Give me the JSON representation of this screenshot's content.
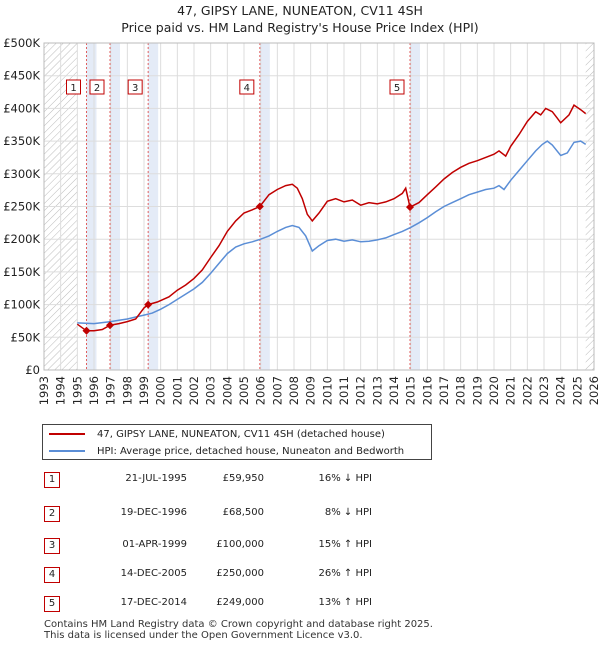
{
  "chart_data": {
    "type": "line",
    "title": "47, GIPSY LANE, NUNEATON, CV11 4SH",
    "subtitle": "Price paid vs. HM Land Registry's House Price Index (HPI)",
    "xlim": [
      1993,
      2026
    ],
    "ylim": [
      0,
      500000
    ],
    "x_ticks": [
      "1993",
      "1994",
      "1995",
      "1996",
      "1997",
      "1998",
      "1999",
      "2000",
      "2001",
      "2002",
      "2003",
      "2004",
      "2005",
      "2006",
      "2007",
      "2008",
      "2009",
      "2010",
      "2011",
      "2012",
      "2013",
      "2014",
      "2015",
      "2016",
      "2017",
      "2018",
      "2019",
      "2020",
      "2021",
      "2022",
      "2023",
      "2024",
      "2025",
      "2026"
    ],
    "y_ticks": [
      {
        "value": 0,
        "label": "£0"
      },
      {
        "value": 50000,
        "label": "£50K"
      },
      {
        "value": 100000,
        "label": "£100K"
      },
      {
        "value": 150000,
        "label": "£150K"
      },
      {
        "value": 200000,
        "label": "£200K"
      },
      {
        "value": 250000,
        "label": "£250K"
      },
      {
        "value": 300000,
        "label": "£300K"
      },
      {
        "value": 350000,
        "label": "£350K"
      },
      {
        "value": 400000,
        "label": "£400K"
      },
      {
        "value": 450000,
        "label": "£450K"
      },
      {
        "value": 500000,
        "label": "£500K"
      }
    ],
    "hatch_ranges": [
      [
        1993,
        1995.0
      ],
      [
        2025.5,
        2026
      ]
    ],
    "series": [
      {
        "name": "47, GIPSY LANE, NUNEATON, CV11 4SH (detached house)",
        "color": "#c00000",
        "points": [
          [
            1995.0,
            70000
          ],
          [
            1995.55,
            59950
          ],
          [
            1996.0,
            60000
          ],
          [
            1996.5,
            62000
          ],
          [
            1996.96,
            68500
          ],
          [
            1997.5,
            71000
          ],
          [
            1998.0,
            74000
          ],
          [
            1998.5,
            78000
          ],
          [
            1999.0,
            95000
          ],
          [
            1999.25,
            100000
          ],
          [
            1999.8,
            104000
          ],
          [
            2000.5,
            112000
          ],
          [
            2001.0,
            122000
          ],
          [
            2001.5,
            130000
          ],
          [
            2002.0,
            140000
          ],
          [
            2002.5,
            153000
          ],
          [
            2003.0,
            172000
          ],
          [
            2003.5,
            190000
          ],
          [
            2004.0,
            212000
          ],
          [
            2004.5,
            228000
          ],
          [
            2005.0,
            240000
          ],
          [
            2005.5,
            245000
          ],
          [
            2005.95,
            250000
          ],
          [
            2006.5,
            268000
          ],
          [
            2007.0,
            276000
          ],
          [
            2007.5,
            282000
          ],
          [
            2007.9,
            284000
          ],
          [
            2008.2,
            278000
          ],
          [
            2008.5,
            262000
          ],
          [
            2008.8,
            238000
          ],
          [
            2009.1,
            228000
          ],
          [
            2009.5,
            240000
          ],
          [
            2010.0,
            258000
          ],
          [
            2010.5,
            262000
          ],
          [
            2011.0,
            257000
          ],
          [
            2011.5,
            260000
          ],
          [
            2012.0,
            252000
          ],
          [
            2012.5,
            256000
          ],
          [
            2013.0,
            254000
          ],
          [
            2013.5,
            257000
          ],
          [
            2014.0,
            262000
          ],
          [
            2014.5,
            270000
          ],
          [
            2014.7,
            278000
          ],
          [
            2014.96,
            249000
          ],
          [
            2015.5,
            256000
          ],
          [
            2016.0,
            268000
          ],
          [
            2016.5,
            280000
          ],
          [
            2017.0,
            292000
          ],
          [
            2017.5,
            302000
          ],
          [
            2018.0,
            310000
          ],
          [
            2018.5,
            316000
          ],
          [
            2019.0,
            320000
          ],
          [
            2019.5,
            325000
          ],
          [
            2020.0,
            330000
          ],
          [
            2020.3,
            335000
          ],
          [
            2020.7,
            327000
          ],
          [
            2021.0,
            342000
          ],
          [
            2021.5,
            360000
          ],
          [
            2022.0,
            380000
          ],
          [
            2022.5,
            395000
          ],
          [
            2022.8,
            390000
          ],
          [
            2023.1,
            400000
          ],
          [
            2023.5,
            395000
          ],
          [
            2023.8,
            385000
          ],
          [
            2024.0,
            378000
          ],
          [
            2024.5,
            390000
          ],
          [
            2024.8,
            405000
          ],
          [
            2025.2,
            398000
          ],
          [
            2025.5,
            392000
          ]
        ]
      },
      {
        "name": "HPI: Average price, detached house, Nuneaton and Bedworth",
        "color": "#5b8ed6",
        "points": [
          [
            1995.0,
            72000
          ],
          [
            1995.5,
            71500
          ],
          [
            1996.0,
            71000
          ],
          [
            1996.5,
            72500
          ],
          [
            1997.0,
            74000
          ],
          [
            1997.5,
            76000
          ],
          [
            1998.0,
            78000
          ],
          [
            1998.5,
            81000
          ],
          [
            1999.0,
            84000
          ],
          [
            1999.5,
            87000
          ],
          [
            2000.0,
            93000
          ],
          [
            2000.5,
            100000
          ],
          [
            2001.0,
            108000
          ],
          [
            2001.5,
            116000
          ],
          [
            2002.0,
            124000
          ],
          [
            2002.5,
            134000
          ],
          [
            2003.0,
            148000
          ],
          [
            2003.5,
            163000
          ],
          [
            2004.0,
            178000
          ],
          [
            2004.5,
            188000
          ],
          [
            2005.0,
            193000
          ],
          [
            2005.5,
            196000
          ],
          [
            2006.0,
            200000
          ],
          [
            2006.5,
            205000
          ],
          [
            2007.0,
            212000
          ],
          [
            2007.5,
            218000
          ],
          [
            2007.9,
            221000
          ],
          [
            2008.3,
            218000
          ],
          [
            2008.7,
            205000
          ],
          [
            2009.1,
            182000
          ],
          [
            2009.5,
            190000
          ],
          [
            2010.0,
            198000
          ],
          [
            2010.5,
            200000
          ],
          [
            2011.0,
            197000
          ],
          [
            2011.5,
            199000
          ],
          [
            2012.0,
            196000
          ],
          [
            2012.5,
            197000
          ],
          [
            2013.0,
            199000
          ],
          [
            2013.5,
            202000
          ],
          [
            2014.0,
            207000
          ],
          [
            2014.5,
            212000
          ],
          [
            2015.0,
            218000
          ],
          [
            2015.5,
            225000
          ],
          [
            2016.0,
            233000
          ],
          [
            2016.5,
            242000
          ],
          [
            2017.0,
            250000
          ],
          [
            2017.5,
            256000
          ],
          [
            2018.0,
            262000
          ],
          [
            2018.5,
            268000
          ],
          [
            2019.0,
            272000
          ],
          [
            2019.5,
            276000
          ],
          [
            2020.0,
            278000
          ],
          [
            2020.3,
            282000
          ],
          [
            2020.6,
            276000
          ],
          [
            2021.0,
            290000
          ],
          [
            2021.5,
            305000
          ],
          [
            2022.0,
            320000
          ],
          [
            2022.5,
            335000
          ],
          [
            2022.9,
            345000
          ],
          [
            2023.2,
            350000
          ],
          [
            2023.5,
            344000
          ],
          [
            2024.0,
            328000
          ],
          [
            2024.4,
            332000
          ],
          [
            2024.8,
            348000
          ],
          [
            2025.2,
            350000
          ],
          [
            2025.5,
            345000
          ]
        ]
      }
    ],
    "markers": [
      {
        "label": "1",
        "x": 1995.55,
        "y": 59950
      },
      {
        "label": "2",
        "x": 1996.96,
        "y": 68500
      },
      {
        "label": "3",
        "x": 1999.25,
        "y": 100000
      },
      {
        "label": "4",
        "x": 2005.95,
        "y": 250000
      },
      {
        "label": "5",
        "x": 2014.96,
        "y": 249000
      }
    ]
  },
  "legend": {
    "property": "47, GIPSY LANE, NUNEATON, CV11 4SH (detached house)",
    "hpi": "HPI: Average price, detached house, Nuneaton and Bedworth"
  },
  "sales": [
    {
      "num": "1",
      "date": "21-JUL-1995",
      "price": "£59,950",
      "hpi": "16% ↓ HPI"
    },
    {
      "num": "2",
      "date": "19-DEC-1996",
      "price": "£68,500",
      "hpi": "8% ↓ HPI"
    },
    {
      "num": "3",
      "date": "01-APR-1999",
      "price": "£100,000",
      "hpi": "15% ↑ HPI"
    },
    {
      "num": "4",
      "date": "14-DEC-2005",
      "price": "£250,000",
      "hpi": "26% ↑ HPI"
    },
    {
      "num": "5",
      "date": "17-DEC-2014",
      "price": "£249,000",
      "hpi": "13% ↑ HPI"
    }
  ],
  "footer": {
    "line1": "Contains HM Land Registry data © Crown copyright and database right 2025.",
    "line2": "This data is licensed under the Open Government Licence v3.0."
  },
  "colors": {
    "property": "#c00000",
    "hpi": "#5b8ed6",
    "band": "#dde6f5",
    "grid": "#dddddd"
  }
}
